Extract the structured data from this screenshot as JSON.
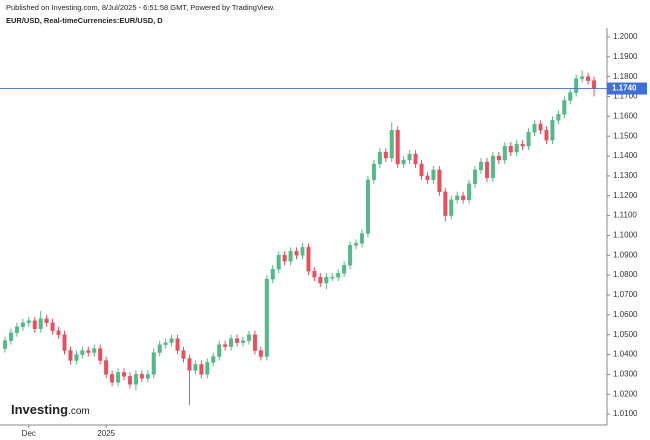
{
  "header": {
    "published": "Published on Investing.com, 8/Jul/2025 - 6:51:58 GMT, Powered by TradingView.",
    "symbol": "EUR/USD, Real-timeCurrencies:EUR/USD, D"
  },
  "logo": {
    "name": "Investing",
    "suffix": ".com"
  },
  "chart_data": {
    "type": "candlestick",
    "up_color": "#53b987",
    "down_color": "#eb4d5c",
    "ylim": [
      1.0045,
      1.2035
    ],
    "yticks": [
      {
        "value": 1.01,
        "label": "1.0100"
      },
      {
        "value": 1.02,
        "label": "1.0200"
      },
      {
        "value": 1.03,
        "label": "1.0300"
      },
      {
        "value": 1.04,
        "label": "1.0400"
      },
      {
        "value": 1.05,
        "label": "1.0500"
      },
      {
        "value": 1.06,
        "label": "1.0600"
      },
      {
        "value": 1.07,
        "label": "1.0700"
      },
      {
        "value": 1.08,
        "label": "1.0800"
      },
      {
        "value": 1.09,
        "label": "1.0900"
      },
      {
        "value": 1.1,
        "label": "1.1000"
      },
      {
        "value": 1.11,
        "label": "1.1100"
      },
      {
        "value": 1.12,
        "label": "1.1200"
      },
      {
        "value": 1.13,
        "label": "1.1300"
      },
      {
        "value": 1.14,
        "label": "1.1400"
      },
      {
        "value": 1.15,
        "label": "1.1500"
      },
      {
        "value": 1.16,
        "label": "1.1600"
      },
      {
        "value": 1.17,
        "label": "1.1700"
      },
      {
        "value": 1.18,
        "label": "1.1800"
      },
      {
        "value": 1.19,
        "label": "1.1900"
      },
      {
        "value": 1.2,
        "label": "1.2000"
      }
    ],
    "price_line": {
      "value": 1.174,
      "label": "1.1740",
      "color": "#3f6fd8"
    },
    "categories": [
      null,
      null,
      null,
      null,
      "Dec",
      null,
      null,
      null,
      null,
      null,
      null,
      null,
      null,
      null,
      null,
      null,
      null,
      "2025",
      null,
      null,
      null,
      null,
      null,
      null,
      null,
      null,
      null,
      null,
      null,
      null,
      null,
      null,
      null,
      null,
      null,
      null,
      null,
      null,
      null,
      null,
      null,
      null,
      null,
      null,
      null,
      null,
      null,
      null,
      null,
      null,
      null,
      null,
      null,
      null,
      null,
      null,
      null,
      null,
      null,
      null,
      null,
      null,
      null,
      null,
      null,
      null,
      null,
      null,
      null,
      null,
      null,
      null,
      null,
      null,
      null,
      null,
      null,
      null,
      null,
      null,
      null,
      null,
      null,
      null,
      null,
      null,
      null,
      null,
      null,
      null,
      null,
      null,
      null,
      null,
      null,
      null,
      null,
      null,
      null,
      null
    ],
    "open": [
      1.043,
      1.047,
      1.051,
      1.054,
      1.056,
      1.057,
      1.053,
      1.058,
      1.056,
      1.052,
      1.05,
      1.042,
      1.037,
      1.04,
      1.042,
      1.041,
      1.043,
      1.037,
      1.03,
      1.026,
      1.031,
      1.029,
      1.025,
      1.03,
      1.028,
      1.03,
      1.041,
      1.045,
      1.046,
      1.048,
      1.042,
      1.038,
      1.032,
      1.035,
      1.03,
      1.036,
      1.039,
      1.045,
      1.044,
      1.048,
      1.046,
      1.047,
      1.05,
      1.042,
      1.039,
      1.078,
      1.083,
      1.09,
      1.087,
      1.092,
      1.09,
      1.094,
      1.082,
      1.079,
      1.076,
      1.079,
      1.079,
      1.081,
      1.085,
      1.095,
      1.096,
      1.101,
      1.128,
      1.136,
      1.142,
      1.139,
      1.153,
      1.136,
      1.138,
      1.141,
      1.136,
      1.13,
      1.128,
      1.133,
      1.122,
      1.11,
      1.118,
      1.12,
      1.118,
      1.126,
      1.133,
      1.137,
      1.129,
      1.14,
      1.138,
      1.145,
      1.142,
      1.146,
      1.145,
      1.152,
      1.156,
      1.153,
      1.148,
      1.158,
      1.161,
      1.168,
      1.172,
      1.179,
      1.18,
      1.178
    ],
    "high": [
      1.049,
      1.053,
      1.056,
      1.058,
      1.059,
      1.059,
      1.062,
      1.06,
      1.058,
      1.054,
      1.052,
      1.044,
      1.042,
      1.044,
      1.044,
      1.045,
      1.045,
      1.039,
      1.032,
      1.033,
      1.033,
      1.031,
      1.032,
      1.032,
      1.032,
      1.043,
      1.047,
      1.048,
      1.05,
      1.05,
      1.044,
      1.04,
      1.037,
      1.037,
      1.038,
      1.041,
      1.047,
      1.047,
      1.05,
      1.05,
      1.049,
      1.052,
      1.052,
      1.044,
      1.08,
      1.085,
      1.092,
      1.092,
      1.094,
      1.094,
      1.096,
      1.096,
      1.084,
      1.081,
      1.081,
      1.081,
      1.083,
      1.087,
      1.097,
      1.098,
      1.103,
      1.13,
      1.138,
      1.144,
      1.144,
      1.157,
      1.155,
      1.14,
      1.143,
      1.143,
      1.138,
      1.132,
      1.135,
      1.135,
      1.124,
      1.12,
      1.122,
      1.122,
      1.128,
      1.135,
      1.139,
      1.139,
      1.142,
      1.142,
      1.147,
      1.147,
      1.148,
      1.148,
      1.154,
      1.158,
      1.158,
      1.155,
      1.16,
      1.163,
      1.17,
      1.174,
      1.181,
      1.183,
      1.182,
      1.18
    ],
    "low": [
      1.041,
      1.045,
      1.049,
      1.052,
      1.054,
      1.051,
      1.051,
      1.054,
      1.05,
      1.048,
      1.04,
      1.035,
      1.035,
      1.038,
      1.039,
      1.039,
      1.035,
      1.028,
      1.024,
      1.024,
      1.027,
      1.023,
      1.022,
      1.026,
      1.026,
      1.028,
      1.039,
      1.043,
      1.044,
      1.04,
      1.036,
      1.0145,
      1.03,
      1.028,
      1.028,
      1.034,
      1.037,
      1.042,
      1.042,
      1.044,
      1.044,
      1.045,
      1.04,
      1.037,
      1.037,
      1.076,
      1.081,
      1.085,
      1.085,
      1.088,
      1.088,
      1.08,
      1.077,
      1.074,
      1.073,
      1.077,
      1.077,
      1.079,
      1.083,
      1.093,
      1.094,
      1.099,
      1.126,
      1.134,
      1.137,
      1.137,
      1.134,
      1.134,
      1.136,
      1.134,
      1.128,
      1.126,
      1.126,
      1.12,
      1.107,
      1.108,
      1.116,
      1.116,
      1.116,
      1.124,
      1.131,
      1.127,
      1.127,
      1.136,
      1.136,
      1.14,
      1.14,
      1.143,
      1.143,
      1.15,
      1.151,
      1.146,
      1.146,
      1.156,
      1.159,
      1.166,
      1.17,
      1.177,
      1.176,
      1.17
    ],
    "close": [
      1.047,
      1.051,
      1.054,
      1.056,
      1.057,
      1.053,
      1.058,
      1.056,
      1.052,
      1.05,
      1.042,
      1.037,
      1.04,
      1.042,
      1.041,
      1.043,
      1.037,
      1.03,
      1.026,
      1.031,
      1.029,
      1.025,
      1.03,
      1.028,
      1.03,
      1.041,
      1.045,
      1.046,
      1.048,
      1.042,
      1.038,
      1.032,
      1.035,
      1.03,
      1.036,
      1.039,
      1.045,
      1.044,
      1.048,
      1.046,
      1.047,
      1.05,
      1.042,
      1.039,
      1.078,
      1.083,
      1.09,
      1.087,
      1.092,
      1.09,
      1.094,
      1.082,
      1.079,
      1.076,
      1.079,
      1.079,
      1.081,
      1.085,
      1.095,
      1.096,
      1.101,
      1.128,
      1.136,
      1.142,
      1.139,
      1.153,
      1.136,
      1.138,
      1.141,
      1.136,
      1.13,
      1.128,
      1.133,
      1.122,
      1.11,
      1.118,
      1.12,
      1.118,
      1.126,
      1.133,
      1.137,
      1.129,
      1.14,
      1.138,
      1.145,
      1.142,
      1.146,
      1.145,
      1.152,
      1.156,
      1.153,
      1.148,
      1.158,
      1.161,
      1.168,
      1.172,
      1.179,
      1.18,
      1.178,
      1.174
    ]
  }
}
